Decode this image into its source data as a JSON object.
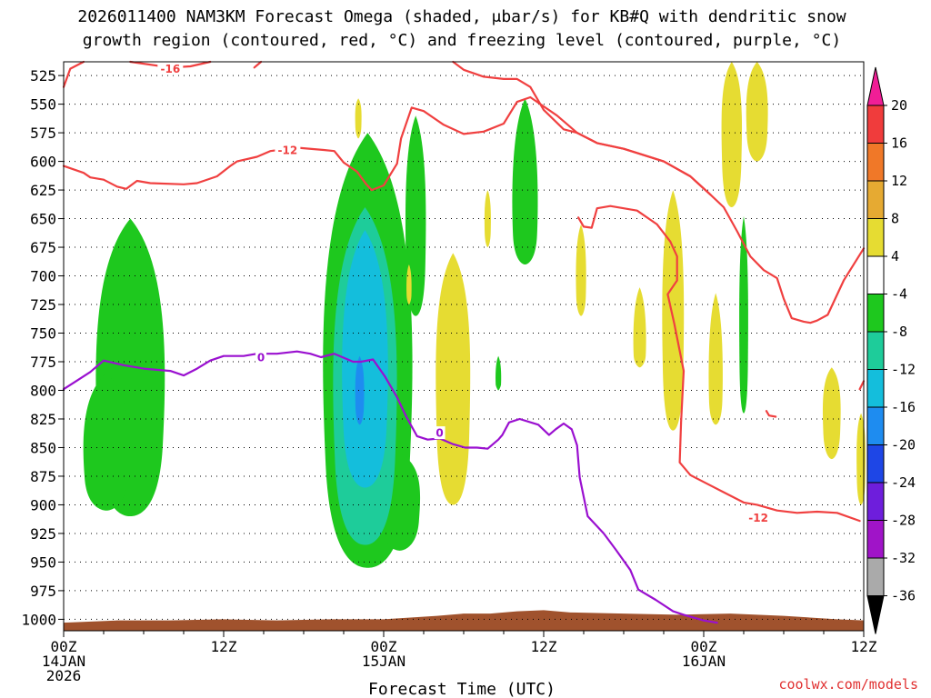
{
  "chart_data": {
    "type": "heatmap",
    "title_line1": "2026011400 NAM3KM Forecast Omega (shaded, μbar/s) for KB#Q with dendritic snow",
    "title_line2": "growth region (contoured, red, °C) and freezing level (contoured, purple, °C)",
    "xlabel": "Forecast Time (UTC)",
    "watermark": "coolwx.com/models",
    "yticks": [
      "525",
      "550",
      "575",
      "600",
      "625",
      "650",
      "675",
      "700",
      "725",
      "750",
      "775",
      "800",
      "825",
      "850",
      "875",
      "900",
      "925",
      "950",
      "975",
      "1000"
    ],
    "ylim": [
      513,
      1010
    ],
    "xlim": [
      0,
      60
    ],
    "x_ticks": [
      {
        "h": 0,
        "line1": "00Z",
        "line2": "14JAN",
        "line3": "2026"
      },
      {
        "h": 12,
        "line1": "12Z",
        "line2": "",
        "line3": ""
      },
      {
        "h": 24,
        "line1": "00Z",
        "line2": "15JAN",
        "line3": ""
      },
      {
        "h": 36,
        "line1": "12Z",
        "line2": "",
        "line3": ""
      },
      {
        "h": 48,
        "line1": "00Z",
        "line2": "16JAN",
        "line3": ""
      },
      {
        "h": 60,
        "line1": "12Z",
        "line2": "",
        "line3": ""
      }
    ],
    "colorbar": {
      "labels": [
        "20",
        "16",
        "12",
        "8",
        "4",
        "-4",
        "-8",
        "-12",
        "-16",
        "-20",
        "-24",
        "-28",
        "-32",
        "-36"
      ],
      "colors": [
        "#f03c3c",
        "#f07828",
        "#e6aa32",
        "#e6dc32",
        "#ffffff",
        "#1ec81e",
        "#1ecc9a",
        "#14bedc",
        "#1e8cf0",
        "#1e46e6",
        "#6e1edc",
        "#a014c8",
        "#aaaaaa"
      ],
      "top_color": "#f01e96",
      "bottom_color": "#000000"
    },
    "contour_colors": {
      "dgz": "#f04040",
      "freezing": "#9a10d0",
      "ground": "#a0522d"
    },
    "contour_labels": [
      {
        "text": "-16",
        "x": 8.0,
        "p": 519,
        "color": "#f04040"
      },
      {
        "text": "-12",
        "x": 16.8,
        "p": 590,
        "color": "#f04040"
      },
      {
        "text": "0",
        "x": 14.8,
        "p": 771,
        "color": "#9a10d0"
      },
      {
        "text": "0",
        "x": 28.2,
        "p": 837,
        "color": "#9a10d0"
      },
      {
        "text": "-12",
        "x": 52.1,
        "p": 911,
        "color": "#f04040"
      }
    ],
    "dgz_contours": [
      [
        [
          0,
          535
        ],
        [
          0.5,
          519
        ],
        [
          1.5,
          513
        ]
      ],
      [
        [
          5,
          513
        ],
        [
          8,
          518
        ],
        [
          9.5,
          517
        ],
        [
          11,
          513
        ]
      ],
      [
        [
          14.8,
          513
        ],
        [
          14.3,
          518
        ]
      ],
      [
        [
          0,
          604
        ],
        [
          1.5,
          610
        ],
        [
          2,
          614
        ],
        [
          3,
          616
        ],
        [
          4,
          622
        ],
        [
          4.7,
          624
        ],
        [
          5.5,
          617
        ],
        [
          6.5,
          619
        ],
        [
          9,
          620
        ],
        [
          10,
          619
        ],
        [
          11.5,
          613
        ],
        [
          12.5,
          604
        ],
        [
          13,
          600
        ],
        [
          14.5,
          596
        ],
        [
          15.5,
          591
        ],
        [
          17.5,
          588
        ],
        [
          19.5,
          590
        ],
        [
          20.3,
          591
        ],
        [
          21,
          601
        ],
        [
          22,
          609
        ],
        [
          22.7,
          620
        ],
        [
          23.1,
          625
        ],
        [
          24,
          621
        ],
        [
          25,
          602
        ],
        [
          25.3,
          580
        ],
        [
          26.1,
          553
        ],
        [
          27,
          556
        ],
        [
          28.5,
          568
        ],
        [
          30,
          576
        ],
        [
          31.5,
          574
        ],
        [
          33,
          567
        ],
        [
          34,
          548
        ],
        [
          35,
          544
        ],
        [
          37,
          560
        ],
        [
          38.5,
          575
        ],
        [
          40,
          584
        ],
        [
          42,
          589
        ],
        [
          45,
          600
        ],
        [
          47,
          613
        ],
        [
          48.5,
          629
        ],
        [
          49.5,
          640
        ],
        [
          50.5,
          661
        ],
        [
          51.5,
          683
        ],
        [
          52.5,
          695
        ],
        [
          53.5,
          702
        ],
        [
          54,
          720
        ],
        [
          54.6,
          737
        ],
        [
          55.5,
          740
        ],
        [
          56,
          741
        ],
        [
          56.5,
          739
        ],
        [
          57.3,
          734
        ],
        [
          58.5,
          704
        ],
        [
          60,
          676
        ]
      ],
      [
        [
          29.2,
          513
        ],
        [
          30,
          520
        ],
        [
          31.5,
          526
        ],
        [
          33,
          528
        ],
        [
          34,
          528
        ],
        [
          35,
          535
        ],
        [
          36,
          555
        ],
        [
          37.5,
          572
        ],
        [
          38.5,
          575
        ]
      ],
      [
        [
          38.5,
          575
        ],
        [
          40,
          584
        ],
        [
          42,
          589
        ],
        [
          45,
          600
        ],
        [
          47,
          613
        ],
        [
          48.5,
          629
        ]
      ],
      [
        [
          38.6,
          649
        ],
        [
          39,
          657
        ],
        [
          39.6,
          658
        ],
        [
          40,
          641
        ],
        [
          41,
          639
        ],
        [
          43,
          643
        ],
        [
          44.5,
          655
        ],
        [
          45.5,
          670
        ],
        [
          46,
          683
        ],
        [
          46,
          704
        ],
        [
          45.3,
          716
        ],
        [
          45.8,
          742
        ],
        [
          46.5,
          783
        ],
        [
          46.3,
          828
        ],
        [
          46.2,
          863
        ],
        [
          47,
          874
        ],
        [
          48,
          880
        ],
        [
          49.5,
          889
        ],
        [
          51,
          898
        ],
        [
          52,
          900
        ],
        [
          53.5,
          905
        ],
        [
          55,
          907
        ],
        [
          56.5,
          906
        ],
        [
          58,
          907
        ],
        [
          59.7,
          914
        ]
      ],
      [
        [
          52.7,
          818
        ],
        [
          52.9,
          822
        ],
        [
          53.4,
          823
        ]
      ],
      [
        [
          60,
          792
        ],
        [
          59.7,
          799
        ]
      ]
    ],
    "freezing_contours": [
      [
        [
          0,
          799
        ],
        [
          0.8,
          793
        ],
        [
          2,
          784
        ],
        [
          3,
          774
        ],
        [
          4.5,
          778
        ],
        [
          6,
          781
        ],
        [
          8,
          783
        ],
        [
          9,
          787
        ],
        [
          10,
          781
        ],
        [
          11,
          774
        ],
        [
          12,
          770
        ],
        [
          13.5,
          770
        ],
        [
          14.5,
          768
        ],
        [
          16,
          768
        ],
        [
          17.5,
          766
        ],
        [
          18.5,
          768
        ],
        [
          19.3,
          771
        ],
        [
          20.3,
          768
        ],
        [
          21.7,
          775
        ],
        [
          22.3,
          775
        ],
        [
          23.2,
          773
        ],
        [
          24.1,
          788
        ],
        [
          25,
          806
        ],
        [
          25.7,
          823
        ],
        [
          26.5,
          840
        ],
        [
          27.3,
          843
        ],
        [
          28.2,
          842
        ],
        [
          29.2,
          847
        ],
        [
          30.1,
          850
        ],
        [
          31,
          850
        ],
        [
          31.8,
          851
        ],
        [
          32.6,
          843
        ],
        [
          32.9,
          839
        ],
        [
          33.4,
          828
        ],
        [
          34.2,
          825
        ],
        [
          35.6,
          830
        ],
        [
          36.4,
          839
        ],
        [
          36.9,
          834
        ],
        [
          37.5,
          829
        ],
        [
          38.1,
          834
        ],
        [
          38.5,
          848
        ],
        [
          38.7,
          876
        ],
        [
          39.3,
          910
        ],
        [
          40.5,
          925
        ],
        [
          41.4,
          939
        ],
        [
          42.5,
          957
        ],
        [
          43.1,
          974
        ],
        [
          44.4,
          983
        ],
        [
          45.7,
          993
        ],
        [
          46.5,
          996
        ],
        [
          48,
          1001
        ],
        [
          49,
          1003
        ]
      ]
    ],
    "omega_regions": [
      {
        "value": -4,
        "center": [
          5.0,
          787
        ],
        "width": 2.7,
        "top": 650,
        "bottom": 910
      },
      {
        "value": -4,
        "center": [
          3.2,
          850
        ],
        "width": 1.8,
        "top": 785,
        "bottom": 905
      },
      {
        "value": -6,
        "center": [
          5.1,
          760
        ],
        "width": 0.7,
        "top": 720,
        "bottom": 800
      },
      {
        "value": -4,
        "center": [
          22.8,
          775
        ],
        "width": 3.5,
        "top": 575,
        "bottom": 955
      },
      {
        "value": -4,
        "center": [
          25.2,
          890
        ],
        "width": 1.6,
        "top": 855,
        "bottom": 940
      },
      {
        "value": -8,
        "center": [
          22.6,
          790
        ],
        "width": 2.5,
        "top": 640,
        "bottom": 935
      },
      {
        "value": -12,
        "center": [
          22.6,
          780
        ],
        "width": 1.8,
        "top": 660,
        "bottom": 885
      },
      {
        "value": -14,
        "center": [
          22.5,
          760
        ],
        "width": 1.1,
        "top": 680,
        "bottom": 850
      },
      {
        "value": -16,
        "center": [
          22.2,
          800
        ],
        "width": 0.35,
        "top": 770,
        "bottom": 830
      },
      {
        "value": -4,
        "center": [
          26.4,
          650
        ],
        "width": 0.8,
        "top": 560,
        "bottom": 735
      },
      {
        "value": -4,
        "center": [
          34.6,
          640
        ],
        "width": 1.0,
        "top": 545,
        "bottom": 690
      },
      {
        "value": -6,
        "center": [
          34.6,
          620
        ],
        "width": 0.4,
        "top": 600,
        "bottom": 650
      },
      {
        "value": -4,
        "center": [
          32.6,
          790
        ],
        "width": 0.22,
        "top": 770,
        "bottom": 800
      },
      {
        "value": -4,
        "center": [
          51.0,
          735
        ],
        "width": 0.35,
        "top": 648,
        "bottom": 820
      },
      {
        "value": 4,
        "center": [
          22.1,
          560
        ],
        "width": 0.25,
        "top": 545,
        "bottom": 580
      },
      {
        "value": 4,
        "center": [
          25.9,
          710
        ],
        "width": 0.2,
        "top": 690,
        "bottom": 725
      },
      {
        "value": 4,
        "center": [
          31.8,
          650
        ],
        "width": 0.25,
        "top": 625,
        "bottom": 675
      },
      {
        "value": 4,
        "center": [
          29.2,
          780
        ],
        "width": 1.35,
        "top": 680,
        "bottom": 900
      },
      {
        "value": 4,
        "center": [
          38.8,
          700
        ],
        "width": 0.4,
        "top": 655,
        "bottom": 735
      },
      {
        "value": 4,
        "center": [
          43.2,
          760
        ],
        "width": 0.5,
        "top": 710,
        "bottom": 780
      },
      {
        "value": 4,
        "center": [
          45.7,
          730
        ],
        "width": 0.85,
        "top": 625,
        "bottom": 835
      },
      {
        "value": 4,
        "center": [
          48.9,
          790
        ],
        "width": 0.55,
        "top": 715,
        "bottom": 830
      },
      {
        "value": 4,
        "center": [
          50.1,
          565
        ],
        "width": 0.8,
        "top": 513,
        "bottom": 640
      },
      {
        "value": 4,
        "center": [
          52.0,
          555
        ],
        "width": 0.85,
        "top": 513,
        "bottom": 600
      },
      {
        "value": 4,
        "center": [
          57.6,
          815
        ],
        "width": 0.7,
        "top": 780,
        "bottom": 860
      },
      {
        "value": 4,
        "center": [
          59.8,
          855
        ],
        "width": 0.35,
        "top": 820,
        "bottom": 900
      }
    ],
    "ground_profile": [
      [
        0,
        1003
      ],
      [
        4,
        1001
      ],
      [
        8,
        1001
      ],
      [
        12,
        1000
      ],
      [
        16,
        1001
      ],
      [
        20,
        1000
      ],
      [
        24,
        1000
      ],
      [
        28,
        997
      ],
      [
        30,
        995
      ],
      [
        32,
        995
      ],
      [
        34,
        993
      ],
      [
        36,
        992
      ],
      [
        38,
        994
      ],
      [
        42,
        995
      ],
      [
        46,
        996
      ],
      [
        50,
        995
      ],
      [
        54,
        997
      ],
      [
        58,
        1000
      ],
      [
        60,
        1001
      ]
    ]
  }
}
